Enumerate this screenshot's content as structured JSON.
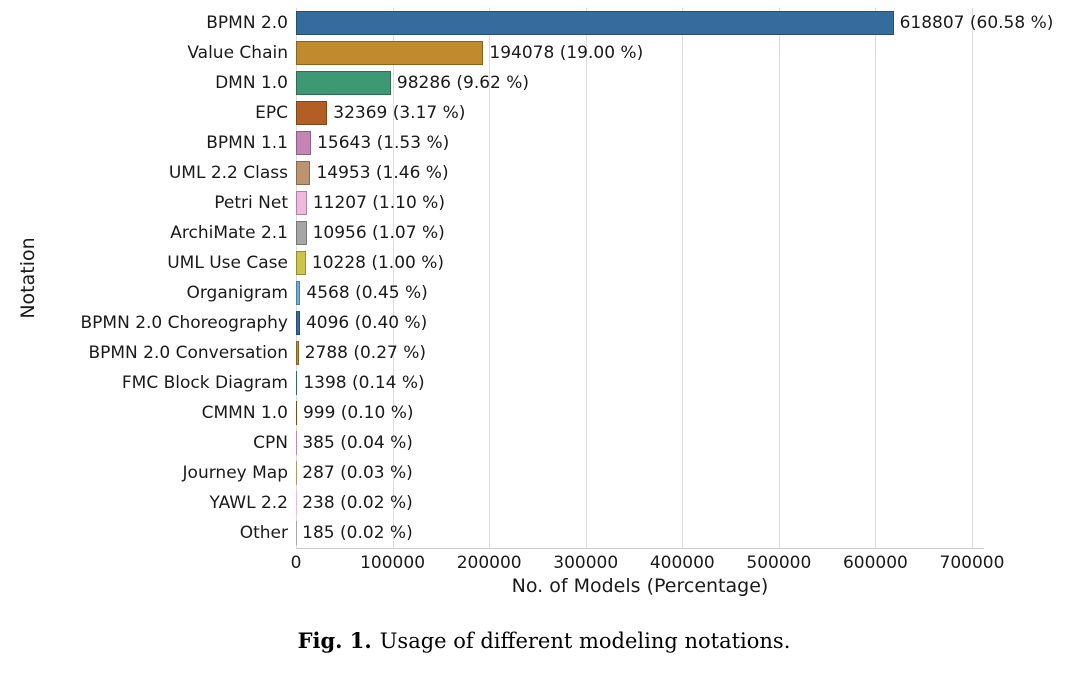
{
  "chart_data": {
    "type": "bar",
    "orientation": "horizontal",
    "title": "",
    "xlabel": "No. of Models (Percentage)",
    "ylabel": "Notation",
    "xlim": [
      0,
      700000
    ],
    "x_ticks": [
      0,
      100000,
      200000,
      300000,
      400000,
      500000,
      600000,
      700000
    ],
    "grid": true,
    "legend": false,
    "categories": [
      "BPMN 2.0",
      "Value Chain",
      "DMN 1.0",
      "EPC",
      "BPMN 1.1",
      "UML 2.2 Class",
      "Petri Net",
      "ArchiMate 2.1",
      "UML Use Case",
      "Organigram",
      "BPMN 2.0 Choreography",
      "BPMN 2.0 Conversation",
      "FMC Block Diagram",
      "CMMN 1.0",
      "CPN",
      "Journey Map",
      "YAWL 2.2",
      "Other"
    ],
    "values": [
      618807,
      194078,
      98286,
      32369,
      15643,
      14953,
      11207,
      10956,
      10228,
      4568,
      4096,
      2788,
      1398,
      999,
      385,
      287,
      238,
      185
    ],
    "percentages": [
      60.58,
      19.0,
      9.62,
      3.17,
      1.53,
      1.46,
      1.1,
      1.07,
      1.0,
      0.45,
      0.4,
      0.27,
      0.14,
      0.1,
      0.04,
      0.03,
      0.02,
      0.02
    ],
    "bar_labels": [
      "618807 (60.58 %)",
      "194078 (19.00 %)",
      "98286 (9.62 %)",
      "32369 (3.17 %)",
      "15643 (1.53 %)",
      "14953 (1.46 %)",
      "11207 (1.10 %)",
      "10956 (1.07 %)",
      "10228 (1.00 %)",
      "4568 (0.45 %)",
      "4096 (0.40 %)",
      "2788 (0.27 %)",
      "1398 (0.14 %)",
      "999 (0.10 %)",
      "385 (0.04 %)",
      "287 (0.03 %)",
      "238 (0.02 %)",
      "185 (0.02 %)"
    ],
    "bar_colors": [
      "#346C9E",
      "#C18A2D",
      "#3E9873",
      "#B35E25",
      "#C285B6",
      "#BD926E",
      "#F0B8DF",
      "#A6A6A6",
      "#CFC34C",
      "#6FAFD8",
      "#346C9E",
      "#C18A2D",
      "#3E9873",
      "#B35E25",
      "#C285B6",
      "#BD926E",
      "#F0B8DF",
      "#A6A6A6"
    ],
    "gridline_color": "#dcdcdc",
    "axis_line_color": "#cccccc",
    "text_color": "#1a1a1a"
  },
  "caption": {
    "tag": "Fig. 1.",
    "text": "Usage of different modeling notations."
  }
}
